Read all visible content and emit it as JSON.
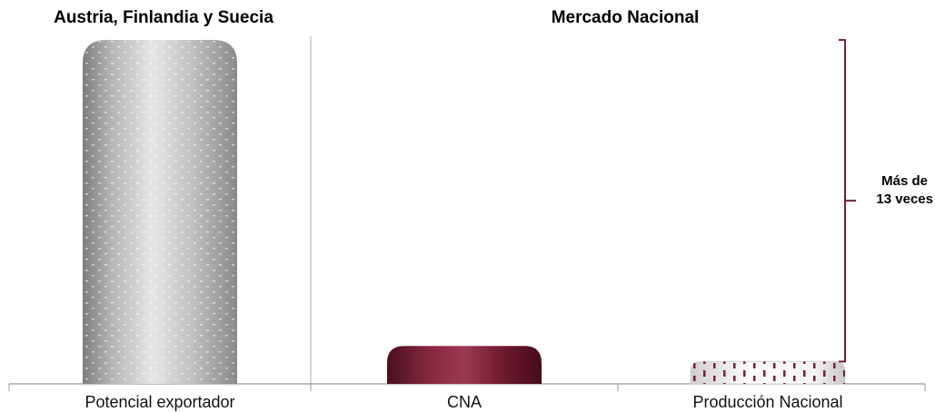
{
  "chart_data": {
    "type": "bar",
    "panels": [
      {
        "title": "Austria, Finlandia y Suecia",
        "categories": [
          "Potencial exportador"
        ]
      },
      {
        "title": "Mercado Nacional",
        "categories": [
          "CNA",
          "Producción Nacional"
        ]
      }
    ],
    "categories": [
      "Potencial exportador",
      "CNA",
      "Producción Nacional"
    ],
    "values": [
      100,
      11,
      6.5
    ],
    "ylim": [
      0,
      100
    ],
    "grid": false,
    "annotation": {
      "line1": "Más de",
      "line2": "13 veces"
    },
    "colors": {
      "potencial": "#b8b8b8",
      "cna": "#7a1f35",
      "produccion": "#ffffff",
      "produccion_dash": "#7a1f35",
      "bracket": "#7a1f35",
      "axis": "#9a9a9a"
    }
  }
}
